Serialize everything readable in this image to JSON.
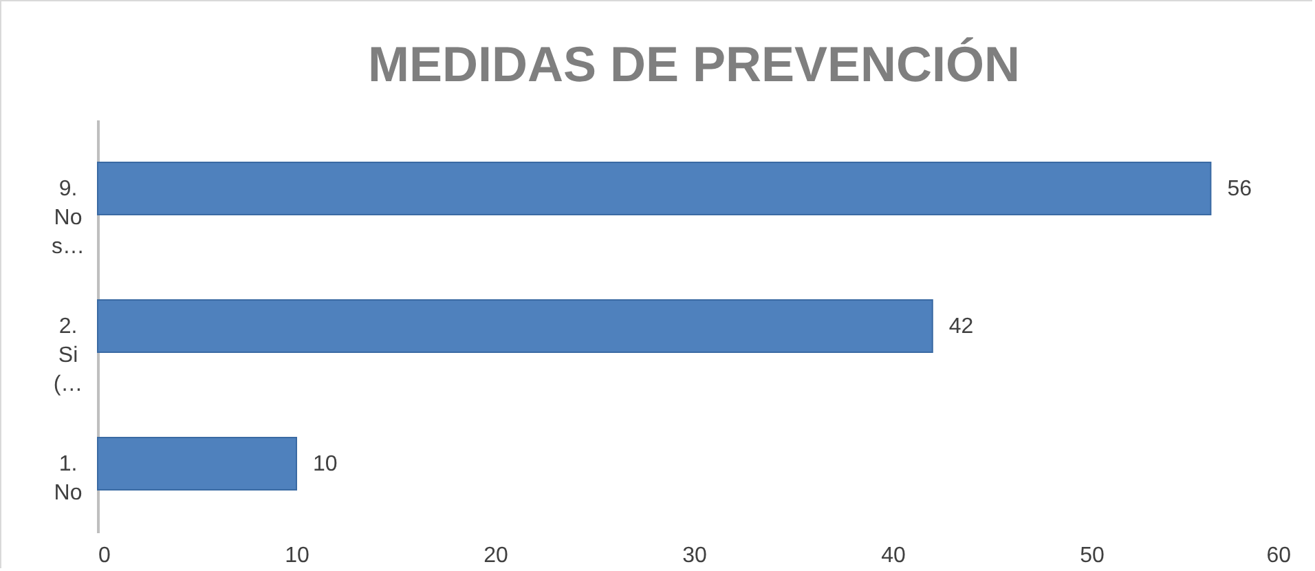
{
  "chart_data": {
    "type": "bar",
    "title": "MEDIDAS DE PREVENCIÓN",
    "orientation": "horizontal",
    "categories": [
      "9. No s…",
      "2. Si (…",
      "1. No"
    ],
    "values": [
      56,
      42,
      10
    ],
    "color": "#4f81bd",
    "xlim": [
      0,
      60
    ],
    "xticks": [
      0,
      10,
      20,
      30,
      40,
      50,
      60
    ],
    "grid": false,
    "data_labels": true
  }
}
